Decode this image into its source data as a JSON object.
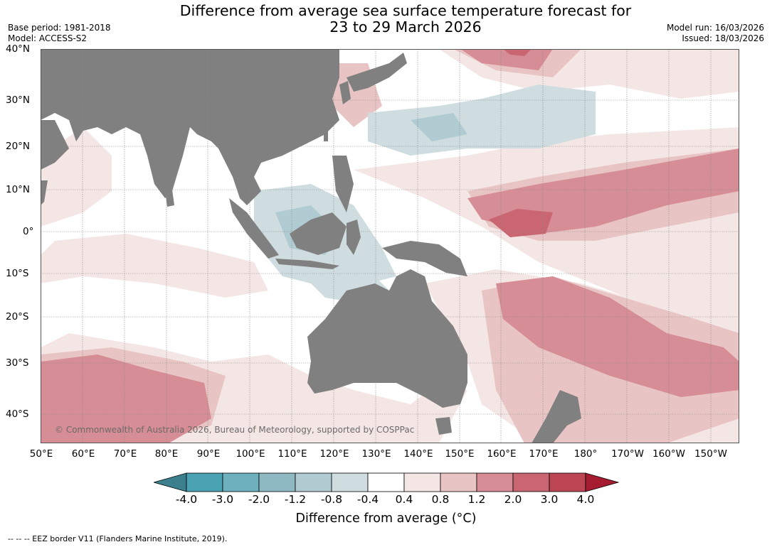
{
  "title_line1": "Difference from average sea surface temperature forecast for",
  "title_line2": "23 to 29 March 2026",
  "base_period": "Base period: 1981-2018",
  "model": "Model: ACCESS-S2",
  "model_run": "Model run: 16/03/2026",
  "issued": "Issued: 18/03/2026",
  "copyright": "© Commonwealth of Australia 2026, Bureau of Meteorology, supported by COSPPac",
  "lat_labels": [
    "40°N",
    "30°N",
    "20°N",
    "10°N",
    "0°",
    "10°S",
    "20°S",
    "30°S",
    "40°S"
  ],
  "lon_labels": [
    "50°E",
    "60°E",
    "70°E",
    "80°E",
    "90°E",
    "100°E",
    "110°E",
    "120°E",
    "130°E",
    "140°E",
    "150°E",
    "160°E",
    "170°E",
    "180°",
    "170°W",
    "160°W",
    "150°W"
  ],
  "legend": {
    "ticks": [
      "-4.0",
      "-3.0",
      "-2.0",
      "-1.2",
      "-0.8",
      "-0.4",
      "0.4",
      "0.8",
      "1.2",
      "2.0",
      "3.0",
      "4.0"
    ],
    "colors": [
      "#3b808c",
      "#4aa1b2",
      "#6eb0bd",
      "#8eb9c3",
      "#b0cbd1",
      "#cfdde1",
      "#ffffff",
      "#f5e6e6",
      "#e8c5c4",
      "#d68d95",
      "#c96672",
      "#bd4655",
      "#a51c30"
    ],
    "label": "Difference from average (°C)"
  },
  "land_color": "#808080",
  "footnote": "--  --  -- EEZ border V11 (Flanders Marine Institute, 2019)."
}
